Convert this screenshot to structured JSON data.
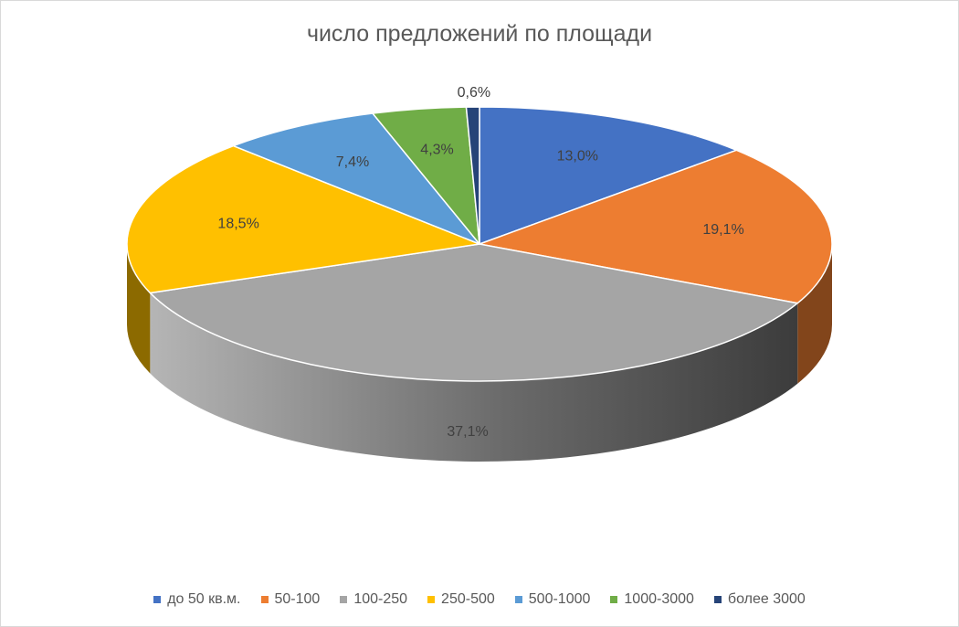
{
  "chart_data": {
    "type": "pie",
    "title": "число предложений по площади",
    "categories": [
      "до 50 кв.м.",
      "50-100",
      "100-250",
      "250-500",
      "500-1000",
      "1000-3000",
      "более 3000"
    ],
    "values": [
      13.0,
      19.1,
      37.1,
      18.5,
      7.4,
      4.3,
      0.6
    ],
    "labels": [
      "13,0%",
      "19,1%",
      "37,1%",
      "18,5%",
      "7,4%",
      "4,3%",
      "0,6%"
    ],
    "colors": [
      "#4472C4",
      "#ED7D31",
      "#A5A5A5",
      "#FFC000",
      "#5B9BD5",
      "#70AD47",
      "#264478"
    ],
    "legend_position": "bottom",
    "style": "3d"
  }
}
